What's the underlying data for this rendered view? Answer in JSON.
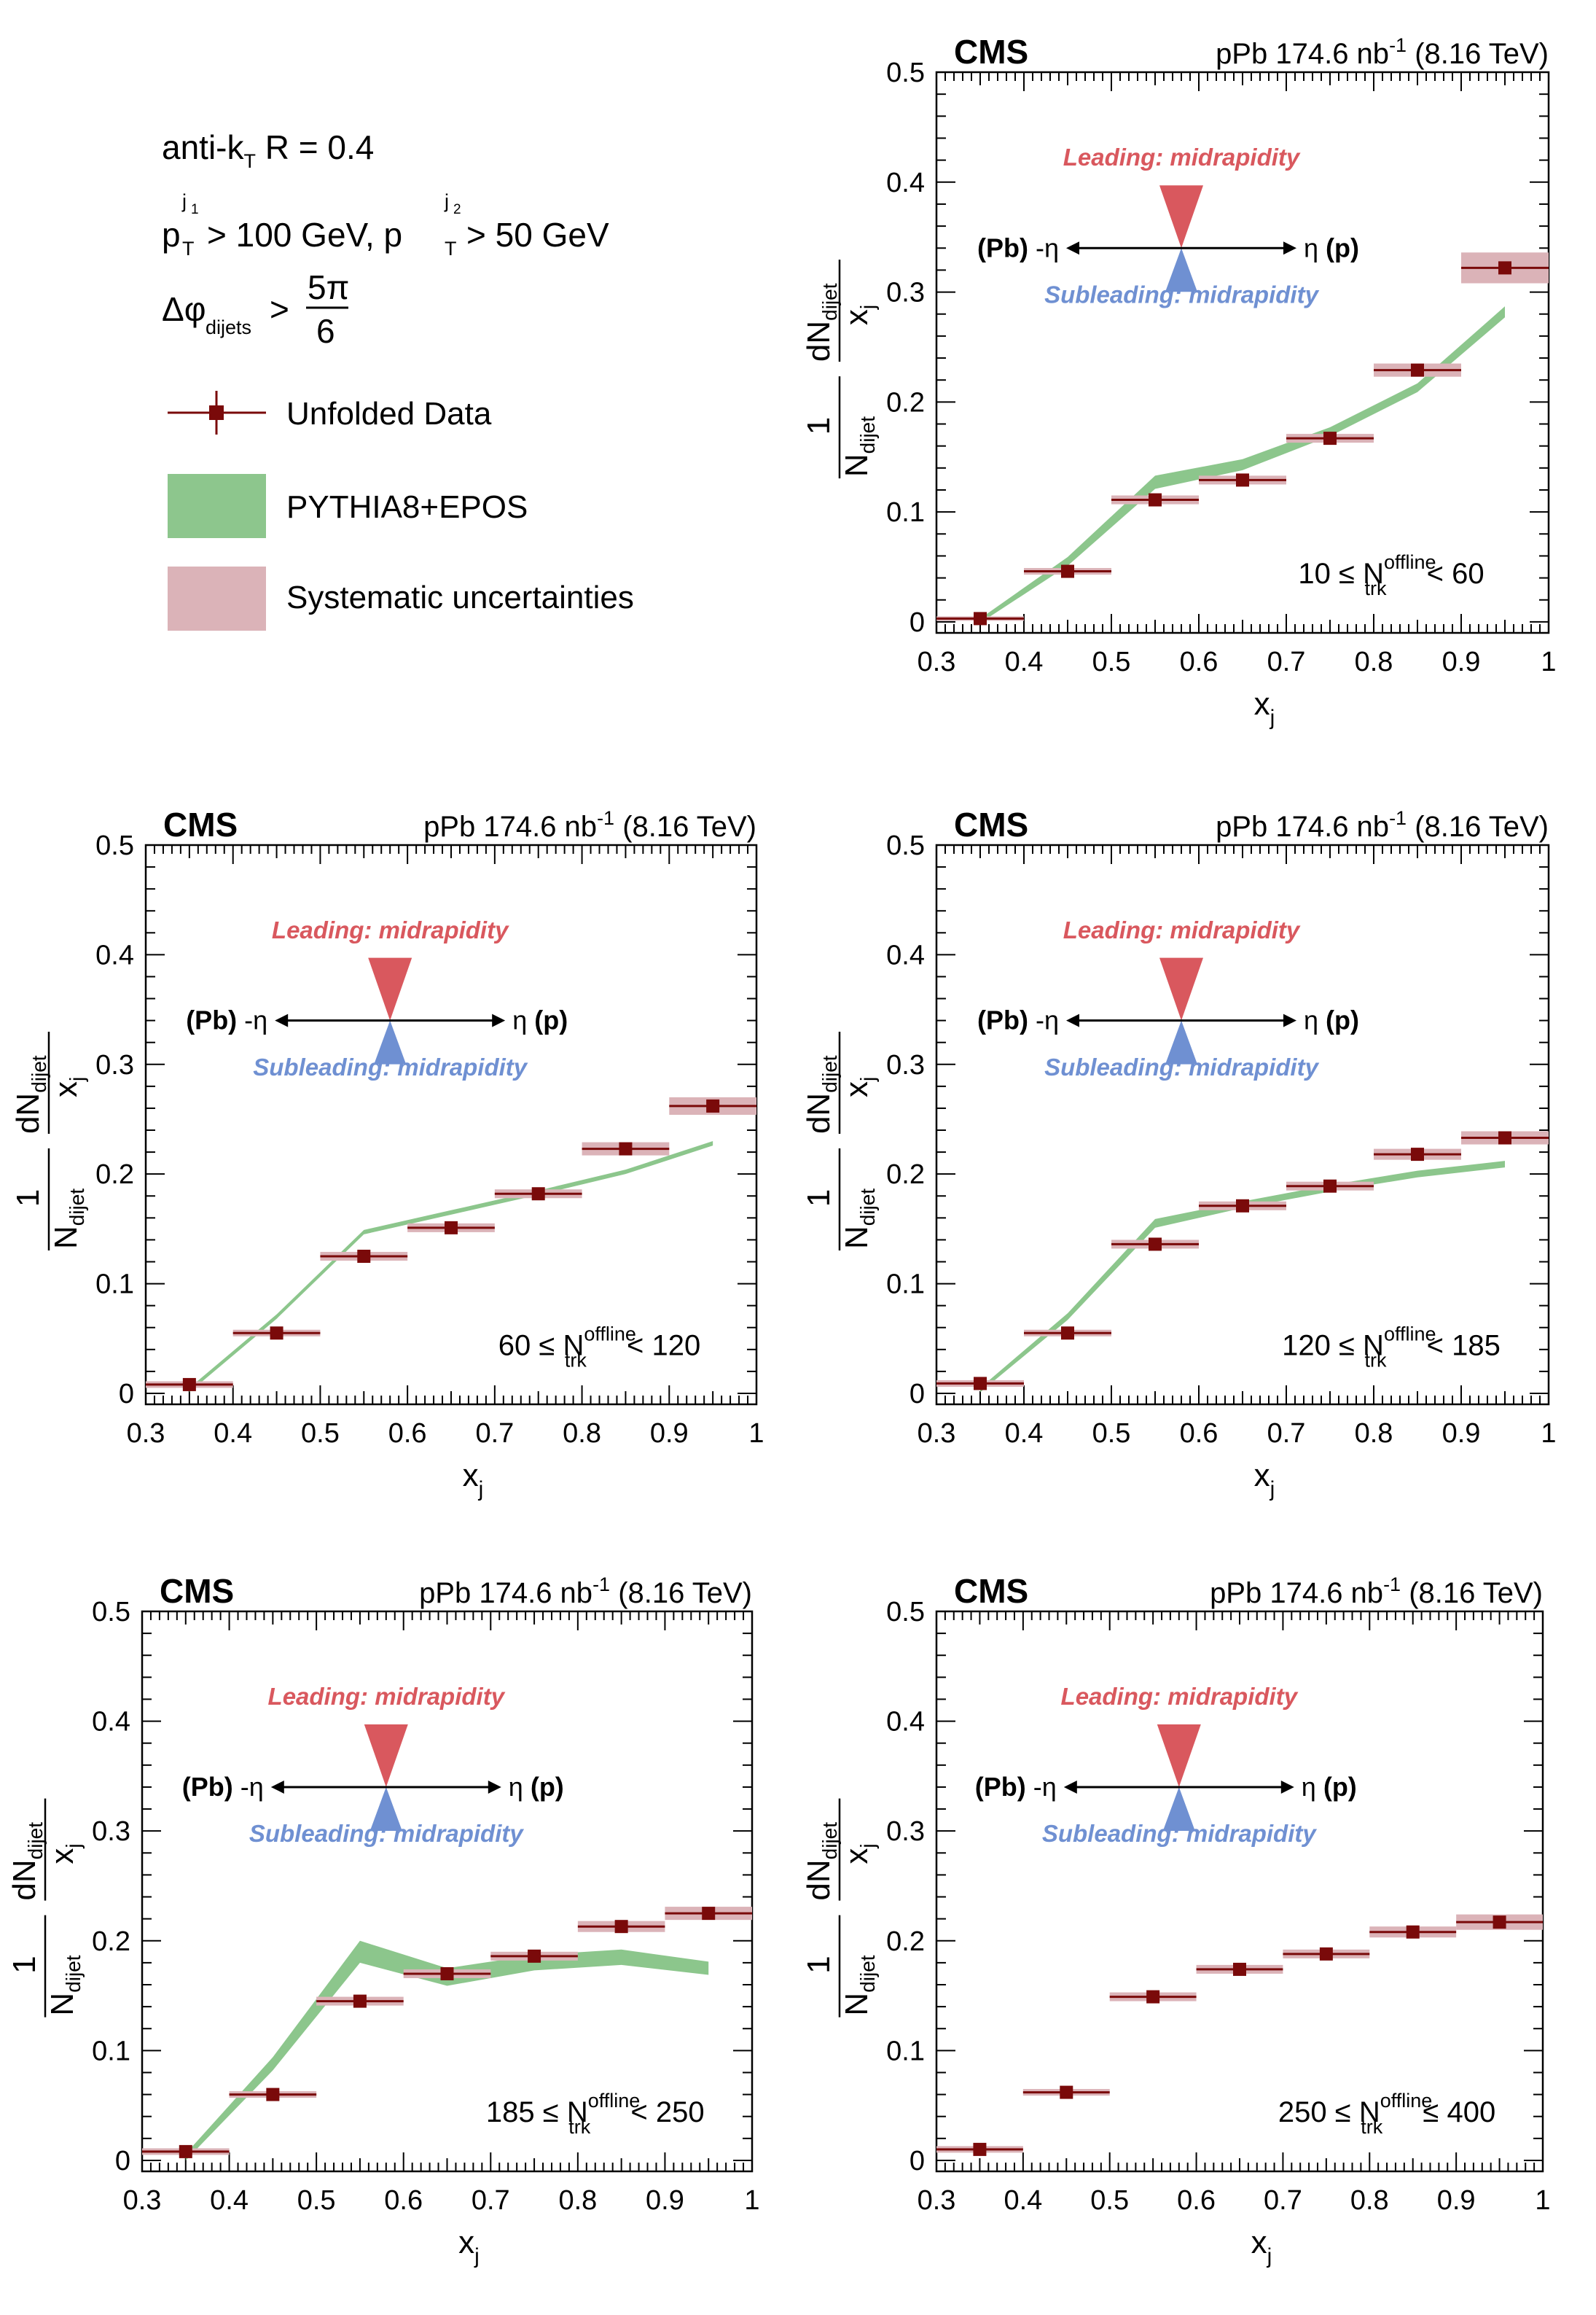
{
  "experiment": "CMS",
  "dataset": "pPb 174.6 nb",
  "dataset_sup": "-1",
  "energy": "(8.16 TeV)",
  "cuts": {
    "algo": "anti-k",
    "algo_sub": "T",
    "algo_rest": " R = 0.4",
    "pt_prefix": "p",
    "pt_sup1": "j",
    "pt_supsub1": "1",
    "pt_sub": "T",
    "pt_rest1": " > 100 GeV, p",
    "pt_sup2": "j",
    "pt_supsub2": "2",
    "pt_rest2": " > 50 GeV",
    "dphi_prefix": "Δφ",
    "dphi_sub": "dijets",
    "dphi_gt": " >",
    "dphi_num": "5π",
    "dphi_den": "6"
  },
  "legend": {
    "data": "Unfolded Data",
    "model": "PYTHIA8+EPOS",
    "syst": "Systematic uncertainties"
  },
  "diagram": {
    "leading": "Leading: midrapidity",
    "subleading": "Subleading: midrapidity",
    "left_bold": "(Pb)",
    "left_eta": " -η",
    "right_eta": "η ",
    "right_bold": "(p)"
  },
  "axes": {
    "x_label": "x",
    "x_sub": "j",
    "y_one": "1",
    "y_N": "N",
    "y_Nsub": "dijet",
    "y_dN": "dN",
    "y_dNsub": "dijet",
    "y_x": "x",
    "y_xsub": "j",
    "x_ticks": [
      "0.3",
      "0.4",
      "0.5",
      "0.6",
      "0.7",
      "0.8",
      "0.9",
      "1"
    ],
    "y_ticks": [
      "0",
      "0.1",
      "0.2",
      "0.3",
      "0.4",
      "0.5"
    ]
  },
  "bin_labels": [
    {
      "lo": "10 ≤ N",
      "sup": "offline",
      "sub": "trk",
      "hi": " < 60"
    },
    {
      "lo": "60 ≤ N",
      "sup": "offline",
      "sub": "trk",
      "hi": " < 120"
    },
    {
      "lo": "120 ≤ N",
      "sup": "offline",
      "sub": "trk",
      "hi": " < 185"
    },
    {
      "lo": "185 ≤ N",
      "sup": "offline",
      "sub": "trk",
      "hi": " < 250"
    },
    {
      "lo": "250 ≤ N",
      "sup": "offline",
      "sub": "trk",
      "hi": " ≤ 400"
    }
  ],
  "colors": {
    "data": "#7a0a0a",
    "model": "#7fc07f",
    "syst": "#dbb3b8",
    "leading": "#d9585e",
    "subleading": "#6f90d2"
  },
  "chart_data": [
    {
      "type": "scatter",
      "x": [
        0.35,
        0.45,
        0.55,
        0.65,
        0.75,
        0.85,
        0.95
      ],
      "series": [
        {
          "name": "Unfolded Data",
          "values": [
            0.003,
            0.046,
            0.111,
            0.129,
            0.167,
            0.229,
            0.322
          ]
        },
        {
          "name": "PYTHIA8+EPOS",
          "values": [
            0.001,
            0.055,
            0.127,
            0.143,
            0.173,
            0.213,
            0.282
          ]
        }
      ],
      "model_band_halfwidth": [
        0.002,
        0.004,
        0.006,
        0.005,
        0.004,
        0.004,
        0.005
      ],
      "syst_halfheight": [
        0.002,
        0.003,
        0.004,
        0.004,
        0.004,
        0.006,
        0.014
      ],
      "xlabel": "x_j",
      "ylabel": "1/N_dijet dN_dijet/x_j",
      "xlim": [
        0.3,
        1.0
      ],
      "ylim": [
        -0.01,
        0.5
      ]
    },
    {
      "type": "scatter",
      "x": [
        0.35,
        0.45,
        0.55,
        0.65,
        0.75,
        0.85,
        0.95
      ],
      "series": [
        {
          "name": "Unfolded Data",
          "values": [
            0.008,
            0.055,
            0.125,
            0.151,
            0.182,
            0.223,
            0.262
          ]
        },
        {
          "name": "PYTHIA8+EPOS",
          "values": [
            0.003,
            0.07,
            0.147,
            0.165,
            0.183,
            0.202,
            0.228
          ]
        }
      ],
      "model_band_halfwidth": [
        0.002,
        0.002,
        0.002,
        0.002,
        0.002,
        0.002,
        0.002
      ],
      "syst_halfheight": [
        0.003,
        0.003,
        0.004,
        0.004,
        0.004,
        0.006,
        0.008
      ],
      "xlabel": "x_j",
      "ylabel": "1/N_dijet dN_dijet/x_j",
      "xlim": [
        0.3,
        1.0
      ],
      "ylim": [
        -0.01,
        0.5
      ]
    },
    {
      "type": "scatter",
      "x": [
        0.35,
        0.45,
        0.55,
        0.65,
        0.75,
        0.85,
        0.95
      ],
      "series": [
        {
          "name": "Unfolded Data",
          "values": [
            0.009,
            0.055,
            0.136,
            0.171,
            0.189,
            0.218,
            0.233
          ]
        },
        {
          "name": "PYTHIA8+EPOS",
          "values": [
            0.003,
            0.07,
            0.155,
            0.172,
            0.187,
            0.2,
            0.209
          ]
        }
      ],
      "model_band_halfwidth": [
        0.002,
        0.003,
        0.004,
        0.003,
        0.003,
        0.003,
        0.003
      ],
      "syst_halfheight": [
        0.003,
        0.003,
        0.004,
        0.004,
        0.004,
        0.005,
        0.006
      ],
      "xlabel": "x_j",
      "ylabel": "1/N_dijet dN_dijet/x_j",
      "xlim": [
        0.3,
        1.0
      ],
      "ylim": [
        -0.01,
        0.5
      ]
    },
    {
      "type": "scatter",
      "x": [
        0.35,
        0.45,
        0.55,
        0.65,
        0.75,
        0.85,
        0.95
      ],
      "series": [
        {
          "name": "Unfolded Data",
          "values": [
            0.008,
            0.06,
            0.145,
            0.17,
            0.186,
            0.213,
            0.225
          ]
        },
        {
          "name": "PYTHIA8+EPOS",
          "values": [
            0.003,
            0.088,
            0.19,
            0.167,
            0.18,
            0.185,
            0.175
          ]
        }
      ],
      "model_band_halfwidth": [
        0.003,
        0.006,
        0.01,
        0.008,
        0.007,
        0.007,
        0.006
      ],
      "syst_halfheight": [
        0.003,
        0.003,
        0.004,
        0.004,
        0.004,
        0.005,
        0.006
      ],
      "xlabel": "x_j",
      "ylabel": "1/N_dijet dN_dijet/x_j",
      "xlim": [
        0.3,
        1.0
      ],
      "ylim": [
        -0.01,
        0.5
      ]
    },
    {
      "type": "scatter",
      "x": [
        0.35,
        0.45,
        0.55,
        0.65,
        0.75,
        0.85,
        0.95
      ],
      "series": [
        {
          "name": "Unfolded Data",
          "values": [
            0.01,
            0.062,
            0.149,
            0.174,
            0.188,
            0.208,
            0.217
          ]
        }
      ],
      "syst_halfheight": [
        0.003,
        0.003,
        0.004,
        0.004,
        0.004,
        0.005,
        0.007
      ],
      "xlabel": "x_j",
      "ylabel": "1/N_dijet dN_dijet/x_j",
      "xlim": [
        0.3,
        1.0
      ],
      "ylim": [
        -0.01,
        0.5
      ]
    }
  ]
}
